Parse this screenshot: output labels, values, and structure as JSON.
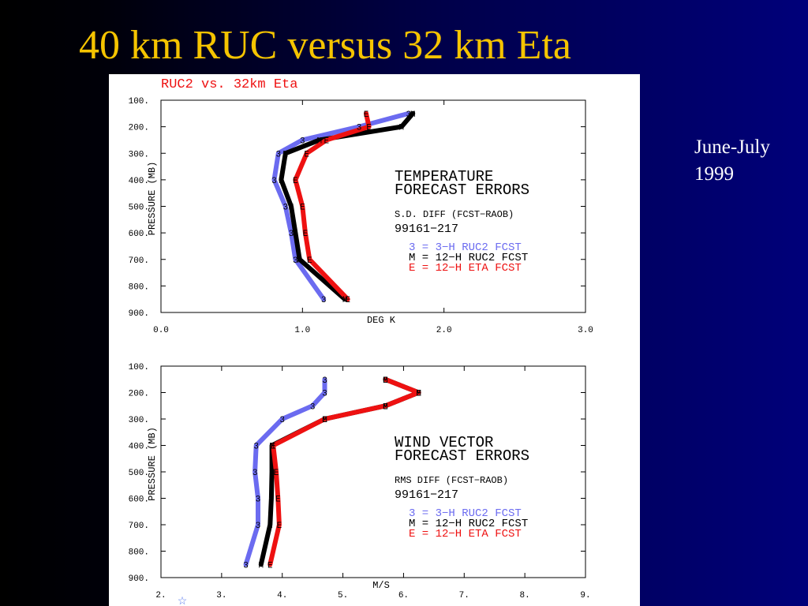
{
  "slide": {
    "title": "40 km RUC versus 32 km Eta",
    "note_line1": "June-July",
    "note_line2": "1999"
  },
  "figure": {
    "heading": "RUC2 vs. 32km Eta"
  },
  "colors": {
    "title": "#f5c400",
    "ruc3": "#6b6bf0",
    "ruc12": "#000000",
    "eta12": "#ee1111",
    "heading": "#ee1111"
  },
  "chart_data": [
    {
      "type": "line",
      "title_line1": "TEMPERATURE",
      "title_line2": "FORECAST ERRORS",
      "stat": "S.D. DIFF (FCST−RAOB)",
      "period": "99161−217",
      "xlabel": "DEG K",
      "ylabel": "PRESSURE (MB)",
      "xlim": [
        0,
        3
      ],
      "ylim": [
        100,
        900
      ],
      "x_ticks": [
        "0.0",
        "1.0",
        "2.0",
        "3.0"
      ],
      "x_tick_values": [
        0,
        1,
        2,
        3
      ],
      "y_ticks": [
        "100.",
        "200.",
        "300.",
        "400.",
        "500.",
        "600.",
        "700.",
        "800.",
        "900."
      ],
      "y_tick_values": [
        100,
        200,
        300,
        400,
        500,
        600,
        700,
        800,
        900
      ],
      "series": [
        {
          "marker": "3",
          "legend": "3 =  3−H RUC2 FCST",
          "color": "#6b6bf0",
          "pressure": [
            850,
            700,
            600,
            500,
            400,
            300,
            250,
            200,
            150
          ],
          "values": [
            1.15,
            0.95,
            0.92,
            0.88,
            0.8,
            0.83,
            1.0,
            1.4,
            1.75
          ]
        },
        {
          "marker": "M",
          "legend": "M = 12−H RUC2 FCST",
          "color": "#000000",
          "pressure": [
            850,
            700,
            600,
            500,
            400,
            300,
            250,
            200,
            150
          ],
          "values": [
            1.3,
            0.98,
            0.95,
            0.92,
            0.85,
            0.88,
            1.12,
            1.7,
            1.78
          ]
        },
        {
          "marker": "E",
          "legend": "E = 12−H ETA  FCST",
          "color": "#ee1111",
          "pressure": [
            850,
            700,
            600,
            500,
            400,
            300,
            250,
            200,
            150
          ],
          "values": [
            1.32,
            1.05,
            1.02,
            1.0,
            0.95,
            1.03,
            1.17,
            1.47,
            1.45
          ]
        }
      ]
    },
    {
      "type": "line",
      "title_line1": "WIND VECTOR",
      "title_line2": "FORECAST ERRORS",
      "stat": "RMS DIFF (FCST−RAOB)",
      "period": "99161−217",
      "xlabel": "M/S",
      "ylabel": "PRESSURE (MB)",
      "xlim": [
        2,
        9
      ],
      "ylim": [
        100,
        900
      ],
      "x_ticks": [
        "2.",
        "3.",
        "4.",
        "5.",
        "6.",
        "7.",
        "8.",
        "9."
      ],
      "x_tick_values": [
        2,
        3,
        4,
        5,
        6,
        7,
        8,
        9
      ],
      "y_ticks": [
        "100.",
        "200.",
        "300.",
        "400.",
        "500.",
        "600.",
        "700.",
        "800.",
        "900."
      ],
      "y_tick_values": [
        100,
        200,
        300,
        400,
        500,
        600,
        700,
        800,
        900
      ],
      "series": [
        {
          "marker": "3",
          "legend": "3 =  3−H RUC2 FCST",
          "color": "#6b6bf0",
          "pressure": [
            850,
            700,
            600,
            500,
            400,
            300,
            250,
            200,
            150
          ],
          "values": [
            3.4,
            3.6,
            3.6,
            3.55,
            3.57,
            4.0,
            4.5,
            4.7,
            4.7
          ]
        },
        {
          "marker": "M",
          "legend": "M = 12−H RUC2 FCST",
          "color": "#000000",
          "pressure": [
            850,
            700,
            600,
            500,
            400,
            300,
            250,
            200,
            150
          ],
          "values": [
            3.65,
            3.8,
            3.82,
            3.83,
            3.83,
            4.7,
            5.7,
            6.25,
            5.7
          ]
        },
        {
          "marker": "E",
          "legend": "E = 12−H ETA  FCST",
          "color": "#ee1111",
          "pressure": [
            850,
            700,
            600,
            500,
            400,
            300,
            250,
            200,
            150
          ],
          "values": [
            3.8,
            3.95,
            3.93,
            3.9,
            3.85,
            4.7,
            5.7,
            6.25,
            5.7
          ]
        }
      ]
    }
  ]
}
